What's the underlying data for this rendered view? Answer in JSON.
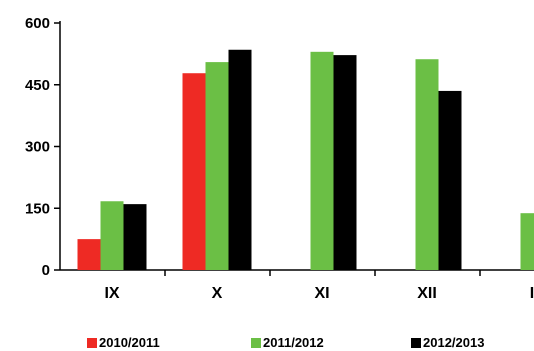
{
  "chart_data": {
    "type": "bar",
    "categories": [
      "IX",
      "X",
      "XI",
      "XII",
      "I"
    ],
    "series": [
      {
        "name": "2010/2011",
        "color": "#ee2a24",
        "values": [
          75,
          478,
          null,
          null,
          null
        ]
      },
      {
        "name": "2011/2012",
        "color": "#6bbf45",
        "values": [
          167,
          505,
          530,
          512,
          138
        ]
      },
      {
        "name": "2012/2013",
        "color": "#000000",
        "values": [
          160,
          535,
          522,
          435,
          null
        ]
      }
    ],
    "y_ticks": [
      0,
      150,
      300,
      450,
      600
    ],
    "ylim": [
      0,
      600
    ],
    "grid": false,
    "legend_position": "bottom"
  }
}
